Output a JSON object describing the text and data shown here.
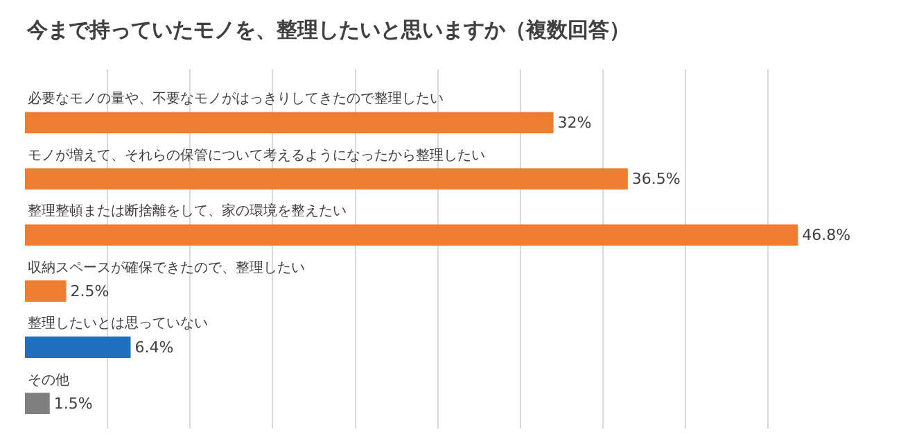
{
  "chart_data": {
    "type": "bar",
    "orientation": "horizontal",
    "title": "今まで持っていたモノを、整理したいと思いますか（複数回答）",
    "categories": [
      "必要なモノの量や、不要なモノがはっきりしてきたので整理したい",
      "モノが増えて、それらの保管について考えるようになったから整理したい",
      "整理整頓または断捨離をして、家の環境を整えたい",
      "収納スペースが確保できたので、整理したい",
      "整理したいとは思っていない",
      "その他"
    ],
    "values": [
      32,
      36.5,
      46.8,
      2.5,
      6.4,
      1.5
    ],
    "colors": [
      "#ed7d31",
      "#ed7d31",
      "#ed7d31",
      "#ed7d31",
      "#1f6fbf",
      "#7f7f7f"
    ],
    "value_labels": [
      "32%",
      "36.5%",
      "46.8%",
      "2.5%",
      "6.4%",
      "1.5%"
    ],
    "grid": "x",
    "tick_labels": false
  }
}
